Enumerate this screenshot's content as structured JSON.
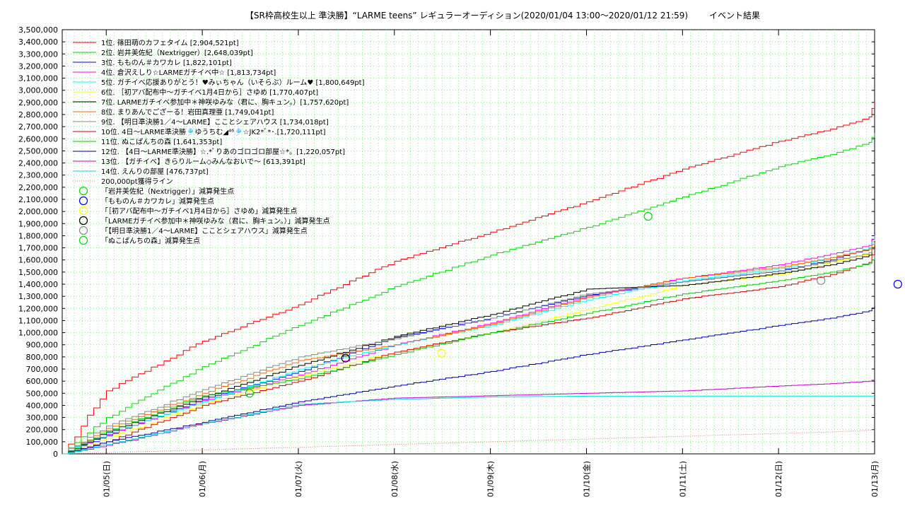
{
  "chart_data": {
    "type": "line",
    "title": "【SR枠高校生以上 準決勝】“LARME teens” レギュラーオーディション(2020/01/04 13:00～2020/01/12 21:59)",
    "subtitle": "イベント結果",
    "xlabel": "",
    "ylabel": "",
    "x_range": [
      "2020-01-04 13:00",
      "2020-01-13 00:00"
    ],
    "x_ticks": [
      "01/05(日)",
      "01/06(月)",
      "01/07(火)",
      "01/08(水)",
      "01/09(木)",
      "01/10(金)",
      "01/11(土)",
      "01/12(日)",
      "01/13(月)"
    ],
    "y_ticks": [
      "0",
      "100,000",
      "200,000",
      "300,000",
      "400,000",
      "500,000",
      "600,000",
      "700,000",
      "800,000",
      "900,000",
      "1,000,000",
      "1,100,000",
      "1,200,000",
      "1,300,000",
      "1,400,000",
      "1,500,000",
      "1,600,000",
      "1,700,000",
      "1,800,000",
      "1,900,000",
      "2,000,000",
      "2,100,000",
      "2,200,000",
      "2,300,000",
      "2,400,000",
      "2,500,000",
      "2,600,000",
      "2,700,000",
      "2,800,000",
      "2,900,000",
      "3,000,000",
      "3,100,000",
      "3,200,000",
      "3,300,000",
      "3,400,000",
      "3,500,000"
    ],
    "ylim": [
      0,
      3500000
    ],
    "grid": true,
    "legend_position": "top-left",
    "x_day_offsets": [
      0,
      0.46,
      1.46,
      2.46,
      3.46,
      4.46,
      5.46,
      6.46,
      7.46,
      8.0,
      8.4,
      8.46
    ],
    "series": [
      {
        "name": "1位. 篠田萌のカフェタイム [2,904,521pt]",
        "color": "#ff0000",
        "values": [
          0,
          520000,
          930000,
          1230000,
          1590000,
          1830000,
          2080000,
          2350000,
          2580000,
          2680000,
          2780000,
          2904521
        ]
      },
      {
        "name": "2位. 岩井美佐紀（Nextrigger）[2,648,039pt]",
        "color": "#00dd00",
        "values": [
          0,
          300000,
          720000,
          1060000,
          1380000,
          1640000,
          1870000,
          2120000,
          2370000,
          2470000,
          2570000,
          2648039
        ]
      },
      {
        "name": "3位. もものん＃カワカレ [1,822,101pt]",
        "color": "#0000ff",
        "values": [
          0,
          150000,
          450000,
          680000,
          960000,
          1120000,
          1310000,
          1420000,
          1510000,
          1600000,
          1700000,
          1822101
        ]
      },
      {
        "name": "4位. 倉沢えしり☆LARMEガチイベ中☆ [1,813,734pt]",
        "color": "#ff00ff",
        "values": [
          0,
          160000,
          440000,
          650000,
          900000,
          1080000,
          1300000,
          1450000,
          1560000,
          1650000,
          1720000,
          1813734
        ]
      },
      {
        "name": "5位. ガチイベ応援ありがとう！♥みぃちゃん（いそらぶ）ルーム♥ [1,800,649pt]",
        "color": "#00ffff",
        "values": [
          0,
          170000,
          430000,
          700000,
          900000,
          1060000,
          1270000,
          1430000,
          1530000,
          1620000,
          1700000,
          1800649
        ]
      },
      {
        "name": "6位. ［初アバ配布中～ガチイベ1月4日から］さゆめ [1,770,407pt]",
        "color": "#ffff00",
        "values": [
          0,
          130000,
          410000,
          640000,
          840000,
          1000000,
          1190000,
          1390000,
          1480000,
          1580000,
          1660000,
          1770407
        ]
      },
      {
        "name": "7位. LARMEガチイベ参加中＊神咲ゆみな（君に、胸キュン。）[1,757,620pt]",
        "color": "#000000",
        "values": [
          0,
          180000,
          470000,
          730000,
          970000,
          1150000,
          1360000,
          1390000,
          1490000,
          1560000,
          1640000,
          1757620
        ]
      },
      {
        "name": "8位. まりあんでござーる！岩田真理亜 [1,749,041pt]",
        "color": "#ff6600",
        "values": [
          0,
          210000,
          500000,
          770000,
          900000,
          1070000,
          1290000,
          1450000,
          1540000,
          1620000,
          1690000,
          1749041
        ]
      },
      {
        "name": "9位. 【明日準決勝1／4～LARME】こことシェアハウス [1,734,018pt]",
        "color": "#888888",
        "values": [
          0,
          230000,
          530000,
          800000,
          950000,
          1120000,
          1320000,
          1420000,
          1510000,
          1590000,
          1660000,
          1734018
        ]
      },
      {
        "name": "10位. 4日～LARME準決勝🎐ゆうちむ◢⁴⁶🎐☆JK2*ﾟ*･.[1,720,111pt]",
        "color": "#dd0000",
        "values": [
          0,
          100000,
          400000,
          600000,
          840000,
          1000000,
          1120000,
          1280000,
          1380000,
          1480000,
          1580000,
          1720111
        ]
      },
      {
        "name": "11位. ぬこぱんちの森 [1,641,353pt]",
        "color": "#00cc00",
        "values": [
          0,
          190000,
          480000,
          620000,
          820000,
          1000000,
          1160000,
          1320000,
          1430000,
          1500000,
          1570000,
          1641353
        ]
      },
      {
        "name": "12位. 【4日～LARME準決勝】☆.*ﾟりあのゴロゴロ部屋☆*。[1,220,057pt]",
        "color": "#0000aa",
        "values": [
          0,
          100000,
          260000,
          430000,
          560000,
          680000,
          820000,
          940000,
          1060000,
          1120000,
          1180000,
          1220057
        ]
      },
      {
        "name": "13位. 【ガチイベ】きらりルーム◇みんなおいで～ [613,391pt]",
        "color": "#cc00cc",
        "values": [
          0,
          70000,
          250000,
          400000,
          460000,
          480000,
          500000,
          520000,
          560000,
          580000,
          600000,
          613391
        ]
      },
      {
        "name": "14位. えんりの部屋 [476,737pt]",
        "color": "#00dddd",
        "values": [
          0,
          80000,
          250000,
          410000,
          450000,
          470000,
          476000,
          476500,
          476700,
          476737,
          476737,
          476737
        ]
      },
      {
        "name": "200,000pt獲得ライン",
        "color": "#dd7777",
        "dotted": true,
        "values": [
          0,
          10000,
          32000,
          54000,
          77000,
          100000,
          122000,
          145000,
          168000,
          180000,
          195000,
          200000
        ]
      }
    ],
    "penalty_points": [
      {
        "name": "「岩井美佐紀（Nextrigger）」減算発生点",
        "color": "#00dd00",
        "day": 6.1,
        "value": 1960000
      },
      {
        "name": "「もものん＃カワカレ」減算発生点",
        "color": "#0000ff",
        "day": 8.7,
        "value": 1400000
      },
      {
        "name": "「［初アバ配布中～ガチイベ1月4日から］さゆめ」減算発生点",
        "color": "#ffff00",
        "day": 3.95,
        "value": 830000
      },
      {
        "name": "「LARMEガチイベ参加中＊神咲ゆみな（君に、胸キュン。）」減算発生点",
        "color": "#000000",
        "day": 2.95,
        "value": 790000
      },
      {
        "name": "「【明日準決勝1／4～LARME】こことシェアハウス」減算発生点",
        "color": "#888888",
        "day": 7.9,
        "value": 1430000
      },
      {
        "name": "「ぬこぱんちの森」減算発生点",
        "color": "#00dd00",
        "day": 1.95,
        "value": 500000
      }
    ]
  }
}
